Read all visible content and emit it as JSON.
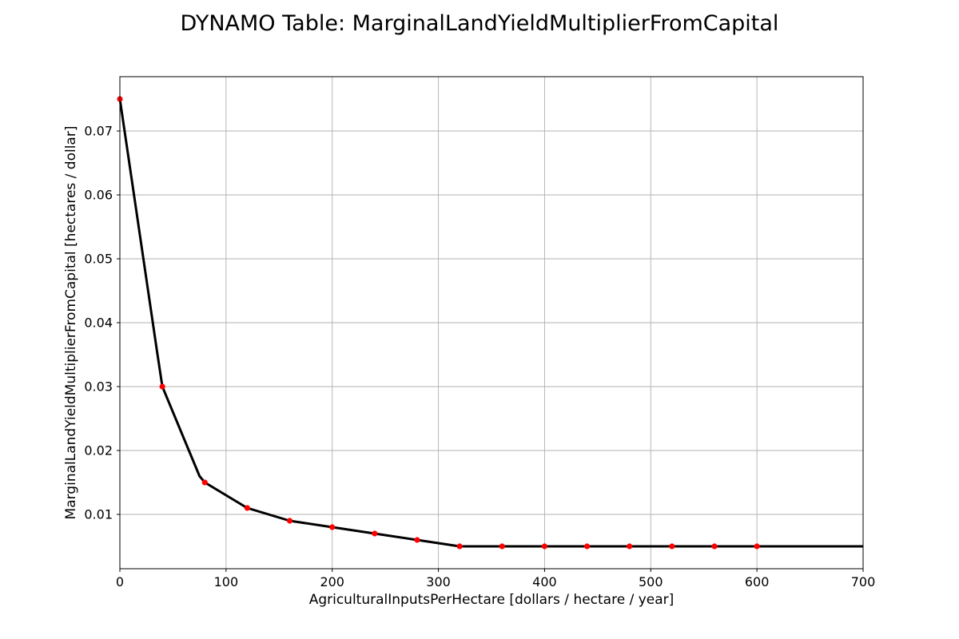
{
  "chart_data": {
    "type": "line",
    "title": "DYNAMO Table: MarginalLandYieldMultiplierFromCapital",
    "xlabel": "AgriculturalInputsPerHectare [dollars / hectare / year]",
    "ylabel": "MarginalLandYieldMultiplierFromCapital [hectares / dollar]",
    "xlim": [
      0,
      700
    ],
    "ylim": [
      0.0015,
      0.0785
    ],
    "xticks": [
      0,
      100,
      200,
      300,
      400,
      500,
      600,
      700
    ],
    "xtick_labels": [
      "0",
      "100",
      "200",
      "300",
      "400",
      "500",
      "600",
      "700"
    ],
    "yticks": [
      0.01,
      0.02,
      0.03,
      0.04,
      0.05,
      0.06,
      0.07
    ],
    "ytick_labels": [
      "0.01",
      "0.02",
      "0.03",
      "0.04",
      "0.05",
      "0.06",
      "0.07"
    ],
    "grid": true,
    "series": [
      {
        "style": "line",
        "color": "#000000",
        "x": [
          0,
          35,
          40,
          75,
          80,
          120,
          160,
          200,
          240,
          280,
          320,
          360,
          400,
          440,
          480,
          520,
          560,
          600,
          700
        ],
        "y": [
          0.075,
          0.0355,
          0.03,
          0.016,
          0.015,
          0.011,
          0.009,
          0.008,
          0.007,
          0.006,
          0.005,
          0.005,
          0.005,
          0.005,
          0.005,
          0.005,
          0.005,
          0.005,
          0.005
        ]
      },
      {
        "style": "points",
        "color": "#ff0000",
        "x": [
          0,
          40,
          80,
          120,
          160,
          200,
          240,
          280,
          320,
          360,
          400,
          440,
          480,
          520,
          560,
          600
        ],
        "y": [
          0.075,
          0.03,
          0.015,
          0.011,
          0.009,
          0.008,
          0.007,
          0.006,
          0.005,
          0.005,
          0.005,
          0.005,
          0.005,
          0.005,
          0.005,
          0.005
        ]
      }
    ]
  }
}
